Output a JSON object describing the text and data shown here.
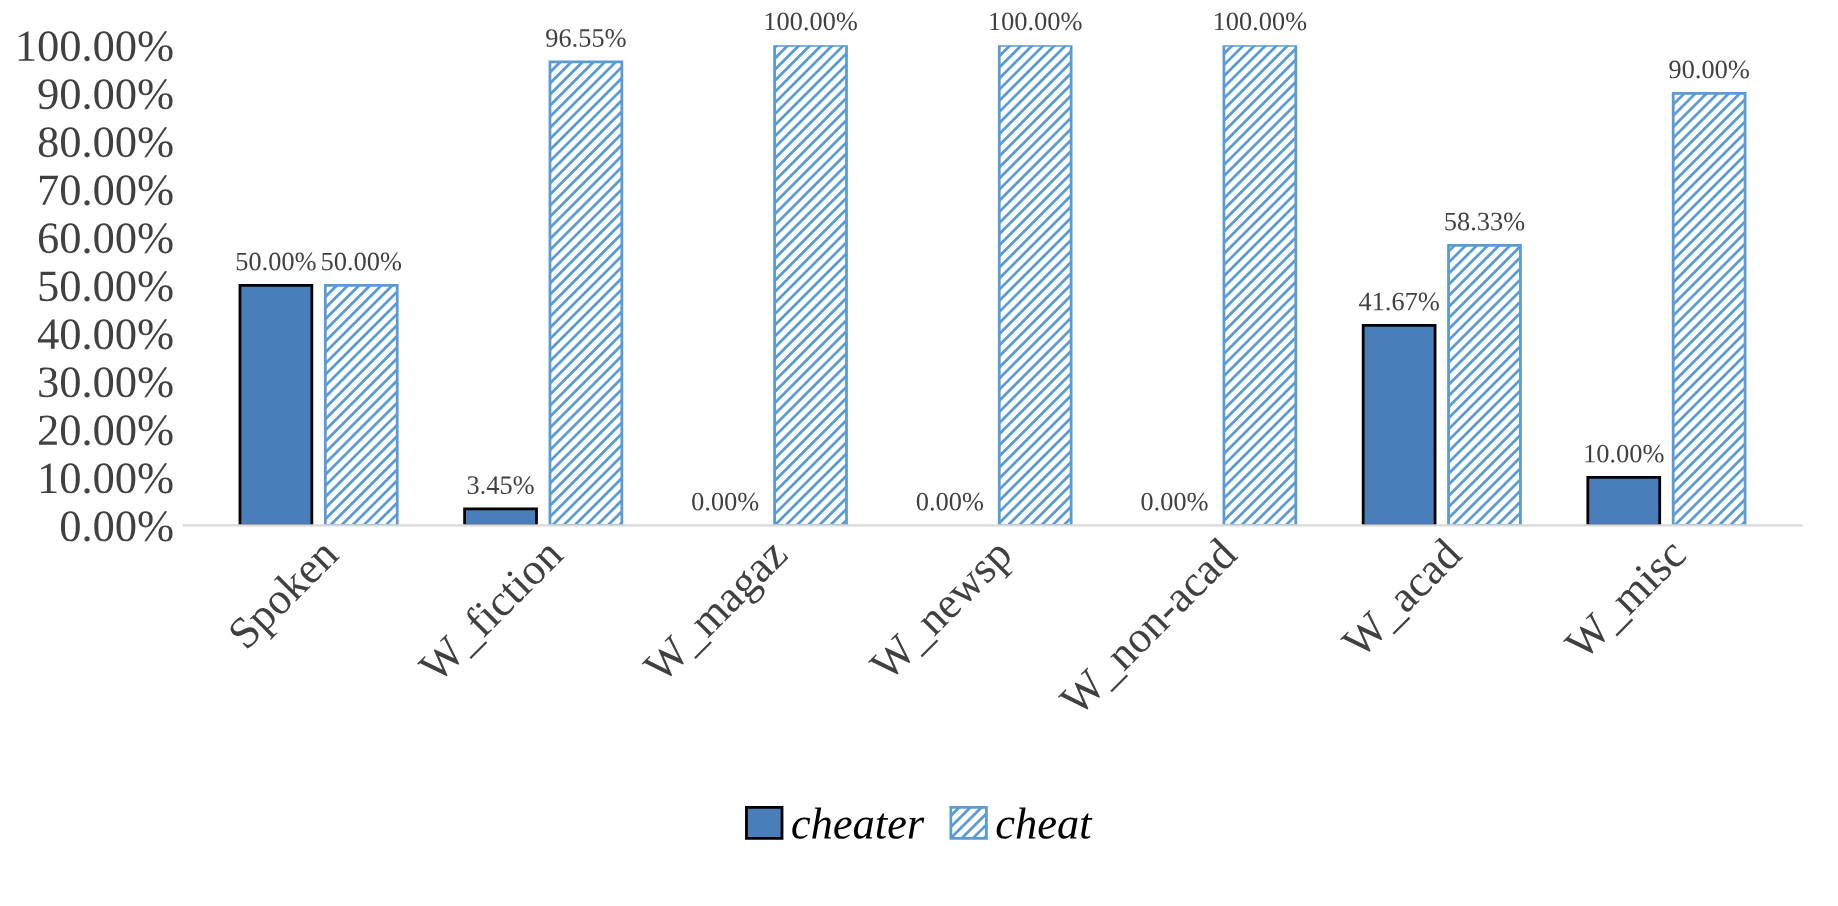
{
  "chart_data": {
    "type": "bar",
    "categories": [
      "Spoken",
      "W_fiction",
      "W_magaz",
      "W_newsp",
      "W_non-acad",
      "W_acad",
      "W_misc"
    ],
    "series": [
      {
        "name": "cheater",
        "color": "#4a7ebb",
        "values": [
          50,
          3.45,
          0,
          0,
          0,
          41.67,
          10
        ],
        "value_labels": [
          "50.00%",
          "3.45%",
          "0.00%",
          "0.00%",
          "0.00%",
          "41.67%",
          "10.00%"
        ]
      },
      {
        "name": "cheat",
        "color": "#5b9bd5",
        "values": [
          50,
          96.55,
          100,
          100,
          100,
          58.33,
          90
        ],
        "value_labels": [
          "50.00%",
          "96.55%",
          "100.00%",
          "100.00%",
          "100.00%",
          "58.33%",
          "90.00%"
        ]
      }
    ],
    "ylim": [
      0,
      100
    ],
    "yticks": [
      {
        "value": 0,
        "label": "0.00%"
      },
      {
        "value": 10,
        "label": "10.00%"
      },
      {
        "value": 20,
        "label": "20.00%"
      },
      {
        "value": 30,
        "label": "30.00%"
      },
      {
        "value": 40,
        "label": "40.00%"
      },
      {
        "value": 50,
        "label": "50.00%"
      },
      {
        "value": 60,
        "label": "60.00%"
      },
      {
        "value": 70,
        "label": "70.00%"
      },
      {
        "value": 80,
        "label": "80.00%"
      },
      {
        "value": 90,
        "label": "90.00%"
      },
      {
        "value": 100,
        "label": "100.00%"
      }
    ],
    "grid": false,
    "legend": "bottom"
  }
}
